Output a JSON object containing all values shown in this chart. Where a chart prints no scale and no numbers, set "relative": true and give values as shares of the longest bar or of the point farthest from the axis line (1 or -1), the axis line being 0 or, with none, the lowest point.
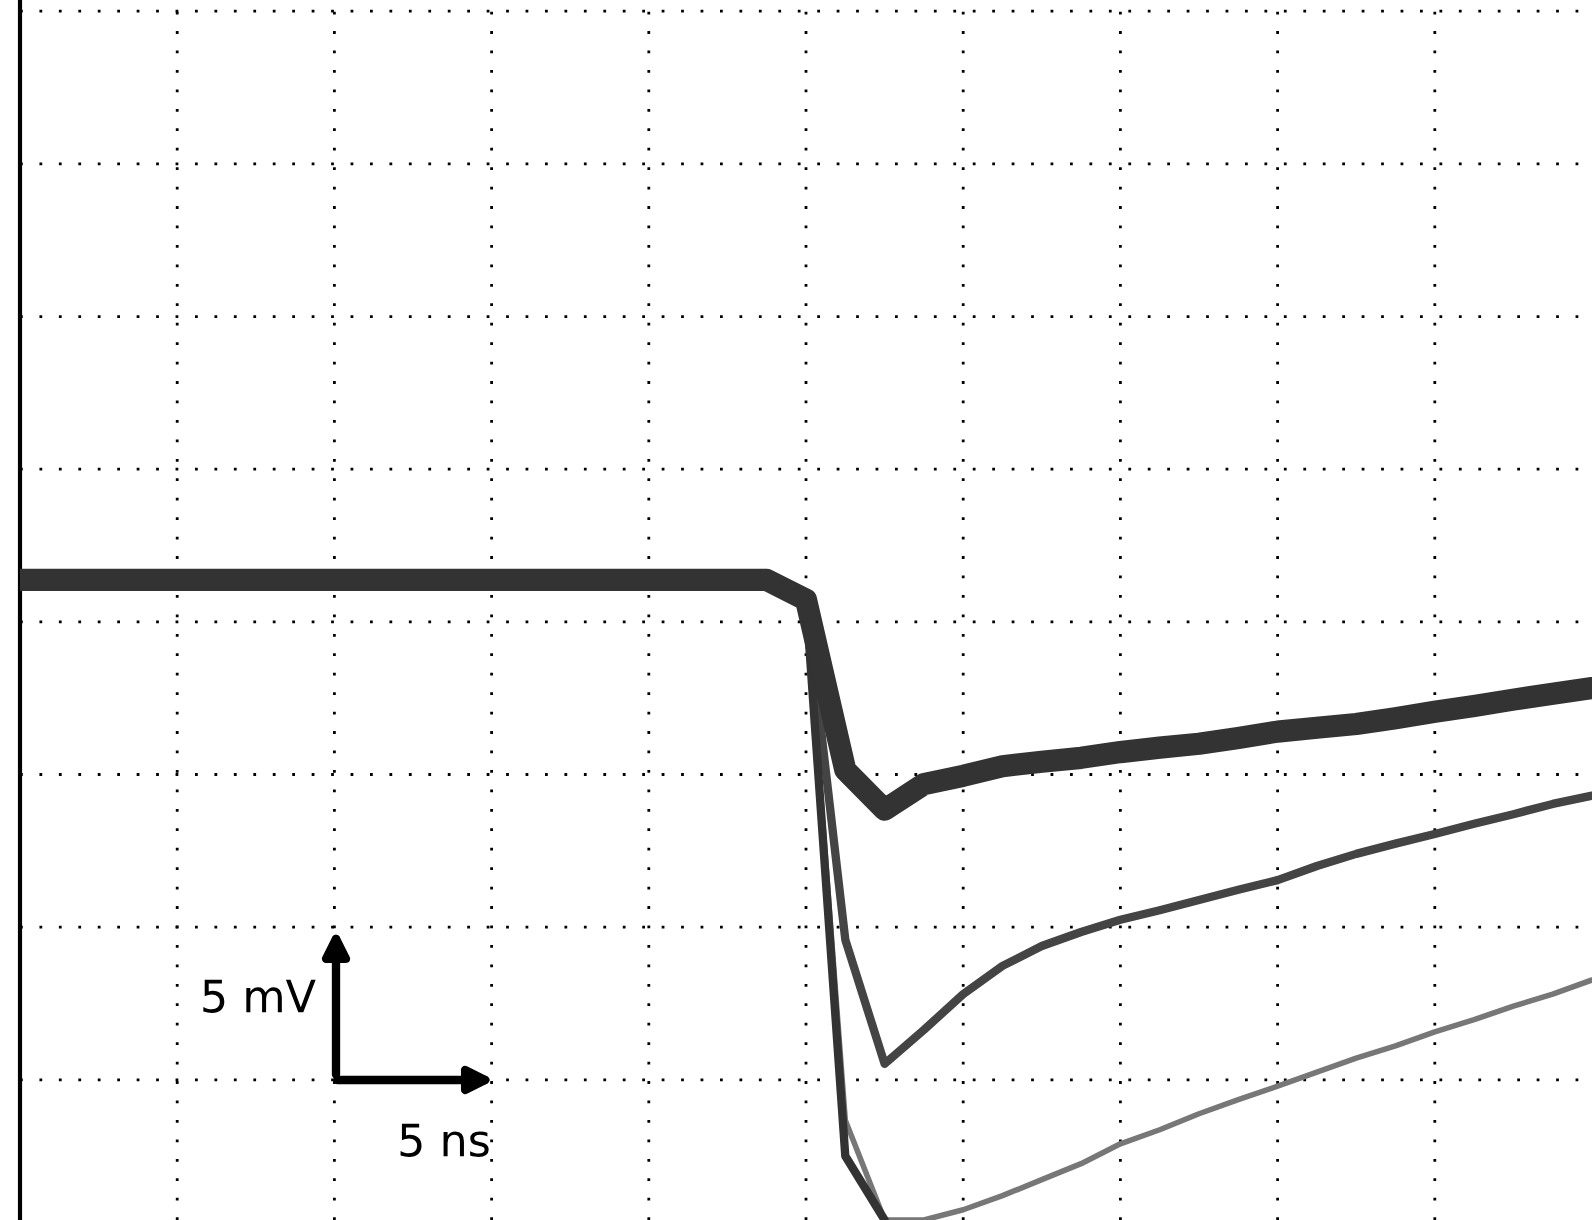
{
  "chart_data": {
    "type": "line",
    "relative": true,
    "grid": true,
    "legend": false,
    "categories": [
      null,
      null,
      null,
      null,
      null,
      null,
      null,
      null,
      null,
      null,
      null,
      null,
      null,
      null,
      null,
      null,
      null,
      null,
      null,
      null,
      null,
      null,
      null,
      null,
      null,
      null,
      null,
      null,
      null,
      null,
      null,
      null,
      null,
      null,
      null,
      null,
      null,
      null,
      null,
      null,
      null
    ],
    "annotations": [
      "5 mV",
      "5 ns"
    ],
    "series": [
      {
        "color": "#333333",
        "values": [
          1,
          1,
          1,
          1,
          1,
          1,
          1,
          1,
          1,
          1,
          1,
          1,
          1,
          1,
          1,
          1,
          1,
          1,
          1,
          1,
          0.969,
          0.703,
          0.641,
          0.681,
          0.694,
          0.709,
          0.716,
          0.722,
          0.731,
          0.738,
          0.744,
          0.753,
          0.763,
          0.769,
          0.775,
          0.784,
          0.794,
          0.803,
          0.813,
          0.822,
          0.831
        ]
      },
      {
        "color": "#444444",
        "values": [
          null,
          null,
          null,
          null,
          null,
          null,
          null,
          null,
          null,
          null,
          null,
          null,
          null,
          null,
          null,
          null,
          null,
          null,
          null,
          1,
          0.969,
          0.438,
          0.244,
          0.297,
          0.353,
          0.397,
          0.428,
          0.45,
          0.469,
          0.484,
          0.5,
          0.516,
          0.531,
          0.553,
          0.572,
          0.588,
          0.603,
          0.619,
          0.634,
          0.65,
          0.663
        ]
      },
      {
        "color": "#777777",
        "values": [
          null,
          null,
          null,
          null,
          null,
          null,
          null,
          null,
          null,
          null,
          null,
          null,
          null,
          null,
          null,
          null,
          null,
          null,
          null,
          1,
          0.969,
          0.156,
          0,
          0,
          0.016,
          0.038,
          0.063,
          0.088,
          0.119,
          0.141,
          0.166,
          0.188,
          0.209,
          0.231,
          0.253,
          0.272,
          0.294,
          0.313,
          0.334,
          0.353,
          0.375
        ]
      },
      {
        "color": "#333333",
        "values": [
          null,
          null,
          null,
          null,
          null,
          null,
          null,
          null,
          null,
          null,
          null,
          null,
          null,
          null,
          null,
          null,
          null,
          null,
          null,
          1,
          0.969,
          0.1,
          0,
          null,
          null,
          null,
          null,
          null,
          null,
          null,
          null,
          null,
          null,
          null,
          null,
          null,
          null,
          null,
          null,
          null,
          null
        ]
      }
    ]
  }
}
